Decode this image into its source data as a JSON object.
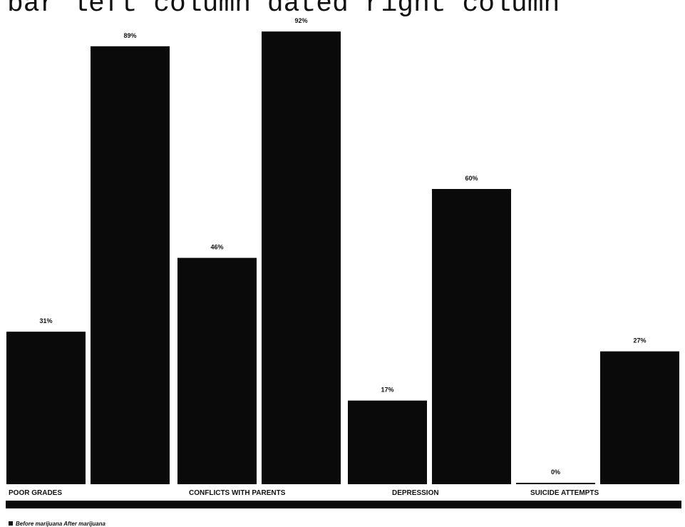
{
  "header": {
    "text": "bar left column  dated right column"
  },
  "chart_data": {
    "type": "bar",
    "categories": [
      "POOR GRADES",
      "CONFLICTS WITH PARENTS",
      "DEPRESSION",
      "SUICIDE ATTEMPTS"
    ],
    "series": [
      {
        "name": "Before marijuana",
        "values": [
          31,
          46,
          17,
          0
        ],
        "color": "#0a0a0a"
      },
      {
        "name": "After marijuana",
        "values": [
          89,
          92,
          60,
          27
        ],
        "color": "#0a0a0a"
      }
    ],
    "value_labels": [
      [
        "31%",
        "46%",
        "17%",
        "0%"
      ],
      [
        "89%",
        "92%",
        "60%",
        "27%"
      ]
    ],
    "ylim": [
      0,
      100
    ],
    "grid": false,
    "legend_position": "bottom-left"
  },
  "legend": {
    "text": "Before marijuana  After marijuana"
  }
}
